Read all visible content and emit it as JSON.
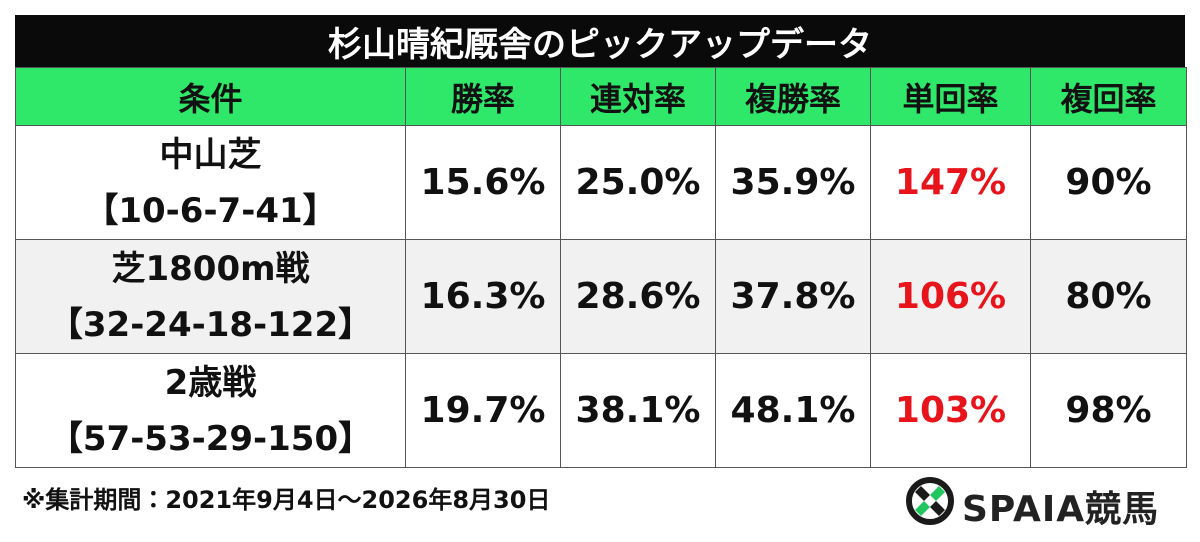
{
  "title": "杉山晴紀厩舎のピックアップデータ",
  "table": {
    "header": [
      "条件",
      "勝率",
      "連対率",
      "複勝率",
      "単回率",
      "複回率"
    ],
    "rows": [
      {
        "condition": "中山芝",
        "record": "【10-6-7-41】",
        "cells": [
          "15.6%",
          "25.0%",
          "35.9%",
          "147%",
          "90%"
        ]
      },
      {
        "condition": "芝1800m戦",
        "record": "【32-24-18-122】",
        "cells": [
          "16.3%",
          "28.6%",
          "37.8%",
          "106%",
          "80%"
        ]
      },
      {
        "condition": "2歳戦",
        "record": "【57-53-29-150】",
        "cells": [
          "19.7%",
          "38.1%",
          "48.1%",
          "103%",
          "98%"
        ]
      }
    ]
  },
  "footnote": "※集計期間：2021年9月4日～2026年8月30日",
  "logo": "SPAIA競馬"
}
